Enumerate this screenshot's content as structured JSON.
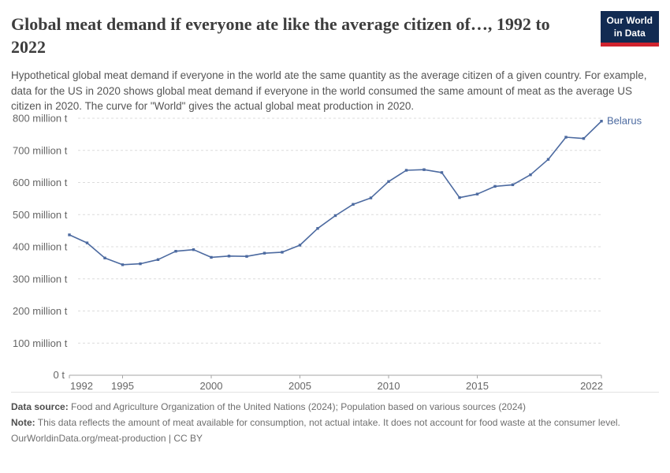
{
  "header": {
    "title": "Global meat demand if everyone ate like the average citizen of…, 1992 to 2022",
    "subtitle": "Hypothetical global meat demand if everyone in the world ate the same quantity as the average citizen of a given country. For example, data for the US in 2020 shows global meat demand if everyone in the world consumed the same amount of meat as the average US citizen in 2020. The curve for \"World\" gives the actual global meat production in 2020.",
    "logo": {
      "line1": "Our World",
      "line2": "in Data",
      "bg_color": "#122b52",
      "accent_color": "#d0232e"
    }
  },
  "chart_data": {
    "type": "line",
    "title": "Global meat demand if everyone ate like the average citizen of…, 1992 to 2022",
    "xlabel": "",
    "ylabel": "",
    "xlim": [
      1992,
      2022
    ],
    "ylim": [
      0,
      800
    ],
    "x_ticks": [
      1992,
      1995,
      2000,
      2005,
      2010,
      2015,
      2022
    ],
    "y_ticks": [
      0,
      100,
      200,
      300,
      400,
      500,
      600,
      700,
      800
    ],
    "y_unit_suffix": " million t",
    "y_zero_label": "0 t",
    "grid": "horizontal-dashed",
    "legend_position": "end-of-line",
    "colors": {
      "grid": "#dcdcdc",
      "axis": "#a6a6a6",
      "tick_label": "#666666"
    },
    "series": [
      {
        "name": "Belarus",
        "color": "#4c6aa0",
        "x": [
          1992,
          1993,
          1994,
          1995,
          1996,
          1997,
          1998,
          1999,
          2000,
          2001,
          2002,
          2003,
          2004,
          2005,
          2006,
          2007,
          2008,
          2009,
          2010,
          2011,
          2012,
          2013,
          2014,
          2015,
          2016,
          2017,
          2018,
          2019,
          2020,
          2021,
          2022
        ],
        "values": [
          437,
          412,
          365,
          344,
          347,
          360,
          386,
          391,
          367,
          371,
          370,
          380,
          383,
          405,
          457,
          497,
          532,
          552,
          603,
          638,
          640,
          631,
          553,
          564,
          588,
          593,
          624,
          672,
          741,
          737,
          791
        ]
      }
    ]
  },
  "footer": {
    "source_label": "Data source:",
    "source_text": " Food and Agriculture Organization of the United Nations (2024); Population based on various sources (2024)",
    "note_label": "Note:",
    "note_text": " This data reflects the amount of meat available for consumption, not actual intake. It does not account for food waste at the consumer level.",
    "cc_text": "OurWorldinData.org/meat-production | CC BY"
  }
}
